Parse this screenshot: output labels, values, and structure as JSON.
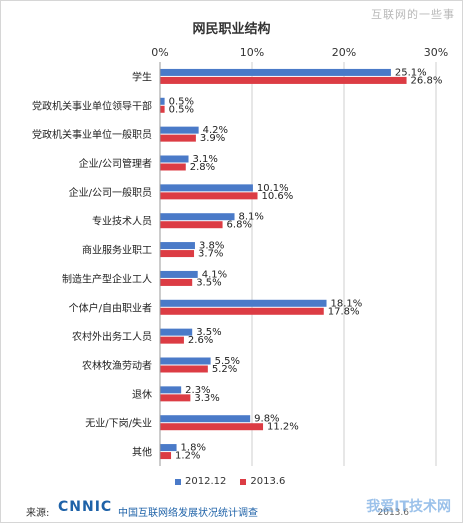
{
  "watermark_top": "互联网的一些事",
  "watermark_bottom": "我爱IT技术网",
  "footer": {
    "source_label": "来源:",
    "logo_text": "CNNIC",
    "org_text": "中国互联网络发展状况统计调查",
    "date_text": "2013.6"
  },
  "colors": {
    "series1": "#4a7ac8",
    "series2": "#dc3c44",
    "grid": "#cfcfcf"
  },
  "chart_data": {
    "type": "bar",
    "orientation": "horizontal",
    "title": "网民职业结构",
    "xlim": [
      0,
      30
    ],
    "x_ticks": [
      "0%",
      "10%",
      "20%",
      "30%"
    ],
    "grid": true,
    "legend_position": "bottom",
    "categories": [
      "学生",
      "党政机关事业单位领导干部",
      "党政机关事业单位一般职员",
      "企业/公司管理者",
      "企业/公司一般职员",
      "专业技术人员",
      "商业服务业职工",
      "制造生产型企业工人",
      "个体户/自由职业者",
      "农村外出务工人员",
      "农林牧渔劳动者",
      "退休",
      "无业/下岗/失业",
      "其他"
    ],
    "series": [
      {
        "name": "2012.12",
        "values": [
          25.1,
          0.5,
          4.2,
          3.1,
          10.1,
          8.1,
          3.8,
          4.1,
          18.1,
          3.5,
          5.5,
          2.3,
          9.8,
          1.8
        ],
        "labels": [
          "25.1%",
          "0.5%",
          "4.2%",
          "3.1%",
          "10.1%",
          "8.1%",
          "3.8%",
          "4.1%",
          "18.1%",
          "3.5%",
          "5.5%",
          "2.3%",
          "9.8%",
          "1.8%"
        ]
      },
      {
        "name": "2013.6",
        "values": [
          26.8,
          0.5,
          3.9,
          2.8,
          10.6,
          6.8,
          3.7,
          3.5,
          17.8,
          2.6,
          5.2,
          3.3,
          11.2,
          1.2
        ],
        "labels": [
          "26.8%",
          "0.5%",
          "3.9%",
          "2.8%",
          "10.6%",
          "6.8%",
          "3.7%",
          "3.5%",
          "17.8%",
          "2.6%",
          "5.2%",
          "3.3%",
          "11.2%",
          "1.2%"
        ]
      }
    ]
  }
}
